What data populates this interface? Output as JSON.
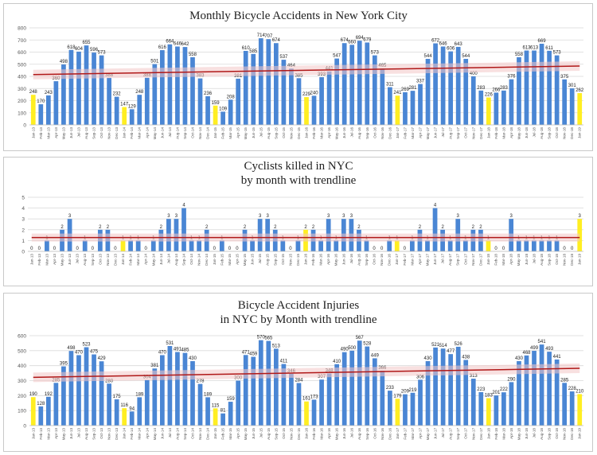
{
  "months": [
    "Jan-13",
    "Feb-13",
    "Mar-13",
    "Apr-13",
    "May-13",
    "Jun-13",
    "Jul-13",
    "Aug-13",
    "Sep-13",
    "Oct-13",
    "Nov-13",
    "Dec-13",
    "Jan-14",
    "Feb-14",
    "Mar-14",
    "Apr-14",
    "May-14",
    "Jun-14",
    "Jul-14",
    "Aug-14",
    "Sep-14",
    "Oct-14",
    "Nov-14",
    "Dec-14",
    "Jan-15",
    "Feb-15",
    "Mar-15",
    "Apr-15",
    "May-15",
    "Jun-15",
    "Jul-15",
    "Aug-15",
    "Sep-15",
    "Oct-15",
    "Nov-15",
    "Dec-15",
    "Jan-16",
    "Feb-16",
    "Mar-16",
    "Apr-16",
    "May-16",
    "Jun-16",
    "Jul-16",
    "Aug-16",
    "Sep-16",
    "Oct-16",
    "Nov-16",
    "Dec-16",
    "Jan-17",
    "Feb-17",
    "Mar-17",
    "Apr-17",
    "May-17",
    "Jun-17",
    "Jul-17",
    "Aug-17",
    "Sep-17",
    "Oct-17",
    "Nov-17",
    "Dec-17",
    "Jan-18",
    "Feb-18",
    "Mar-18",
    "Apr-18",
    "May-18",
    "Jun-18",
    "Jul-18",
    "Aug-18",
    "Sep-18",
    "Oct-18",
    "Nov-18",
    "Dec-18",
    "Jan-19"
  ],
  "colors": {
    "bar": "#4a86d4",
    "bar_highlight": "#ffee22",
    "trend": "#b01818",
    "band": "#f2c6c6",
    "grid": "#d9d9d9",
    "axis_text": "#555555",
    "label_text": "#222222"
  },
  "chart_data": [
    {
      "type": "bar",
      "title": "Monthly Bicycle Accidents in New York City",
      "title_lines": [
        "Monthly Bicycle Accidents in New York City"
      ],
      "ylim": [
        0,
        800
      ],
      "yticks": [
        "0",
        "100",
        "200",
        "300",
        "400",
        "500",
        "600",
        "700",
        "800"
      ],
      "highlight": [
        0,
        12,
        24,
        36,
        48,
        60,
        72
      ],
      "values": [
        248,
        170,
        243,
        360,
        498,
        618,
        604,
        655,
        596,
        573,
        388,
        232,
        147,
        129,
        248,
        388,
        501,
        616,
        664,
        646,
        642,
        558,
        383,
        236,
        159,
        109,
        208,
        381,
        610,
        585,
        714,
        707,
        674,
        537,
        464,
        385,
        229,
        240,
        393,
        441,
        547,
        674,
        660,
        694,
        679,
        573,
        465,
        311,
        241,
        269,
        281,
        337,
        544,
        672,
        646,
        606,
        643,
        544,
        400,
        283,
        226,
        266,
        283,
        376,
        558,
        613,
        613,
        669,
        611,
        573,
        375,
        301,
        262
      ],
      "trend": [
        415,
        485
      ]
    },
    {
      "type": "bar",
      "title": "Cyclists killed in NYC by month with trendline",
      "title_lines": [
        "Cyclists killed in NYC",
        "by month with trendline"
      ],
      "ylim": [
        0,
        5
      ],
      "yticks": [
        "0",
        "1",
        "2",
        "3",
        "4",
        "5"
      ],
      "highlight": [
        0,
        12,
        24,
        36,
        48,
        60,
        72
      ],
      "values": [
        0,
        0,
        1,
        0,
        2,
        3,
        0,
        1,
        0,
        2,
        2,
        0,
        1,
        1,
        1,
        0,
        1,
        2,
        3,
        3,
        4,
        1,
        1,
        2,
        0,
        1,
        0,
        0,
        2,
        1,
        3,
        3,
        2,
        1,
        0,
        1,
        2,
        2,
        1,
        3,
        1,
        3,
        3,
        2,
        1,
        0,
        0,
        1,
        1,
        0,
        1,
        2,
        1,
        4,
        2,
        1,
        3,
        1,
        2,
        2,
        1,
        0,
        0,
        3,
        1,
        1,
        1,
        1,
        1,
        1,
        0,
        0,
        3
      ],
      "trend": [
        1.28,
        1.28
      ]
    },
    {
      "type": "bar",
      "title": "Bicycle Accident Injuries in NYC by Month with trendline",
      "title_lines": [
        "Bicycle Accident Injuries",
        "in NYC by Month with trendline"
      ],
      "ylim": [
        0,
        600
      ],
      "yticks": [
        "0",
        "100",
        "200",
        "300",
        "400",
        "500",
        "600"
      ],
      "highlight": [
        0,
        12,
        24,
        36,
        48,
        60,
        72
      ],
      "values": [
        190,
        128,
        192,
        285,
        395,
        498,
        470,
        523,
        475,
        429,
        280,
        175,
        116,
        94,
        189,
        304,
        381,
        470,
        531,
        491,
        485,
        430,
        278,
        189,
        115,
        81,
        159,
        300,
        471,
        459,
        570,
        565,
        513,
        411,
        346,
        284,
        161,
        173,
        307,
        348,
        410,
        490,
        500,
        567,
        528,
        449,
        366,
        233,
        179,
        209,
        219,
        306,
        430,
        521,
        514,
        477,
        526,
        438,
        313,
        223,
        183,
        201,
        222,
        290,
        430,
        468,
        499,
        541,
        493,
        441,
        285,
        228,
        210
      ],
      "trend": [
        322,
        382
      ]
    }
  ]
}
